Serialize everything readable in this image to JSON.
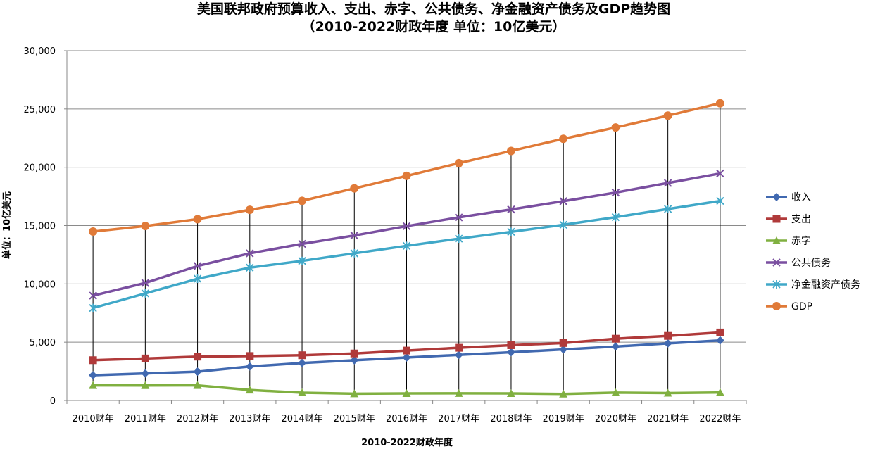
{
  "chart_data": {
    "type": "line",
    "title": "美国联邦政府预算收入、支出、赤字、公共债务、净金融资产债务及GDP趋势图",
    "subtitle": "（2010-2022财政年度  单位：10亿美元）",
    "xlabel": "2010-2022财政年度",
    "ylabel": "单位：10亿美元",
    "categories": [
      "2010财年",
      "2011财年",
      "2012财年",
      "2013财年",
      "2014财年",
      "2015财年",
      "2016财年",
      "2017财年",
      "2018财年",
      "2019财年",
      "2020财年",
      "2021财年",
      "2022财年"
    ],
    "ylim": [
      0,
      30000
    ],
    "yticks": [
      0,
      5000,
      10000,
      15000,
      20000,
      25000,
      30000
    ],
    "ytick_labels": [
      "0",
      "5,000",
      "10,000",
      "15,000",
      "20,000",
      "25,000",
      "30,000"
    ],
    "grid": true,
    "drop_lines": true,
    "legend_position": "right",
    "series": [
      {
        "name": "收入",
        "color": "#4169b0",
        "marker": "diamond",
        "values": [
          2165,
          2314,
          2469,
          2915,
          3215,
          3450,
          3680,
          3910,
          4135,
          4375,
          4625,
          4900,
          5150
        ]
      },
      {
        "name": "支出",
        "color": "#b03a3a",
        "marker": "square",
        "values": [
          3455,
          3600,
          3760,
          3810,
          3880,
          4030,
          4280,
          4520,
          4740,
          4930,
          5300,
          5540,
          5830
        ]
      },
      {
        "name": "赤字",
        "color": "#80b040",
        "marker": "triangle",
        "values": [
          1290,
          1286,
          1291,
          895,
          665,
          580,
          600,
          610,
          605,
          555,
          675,
          635,
          685
        ]
      },
      {
        "name": "公共债务",
        "color": "#7a4fa0",
        "marker": "x",
        "values": [
          8990,
          10080,
          11530,
          12620,
          13430,
          14150,
          14950,
          15700,
          16380,
          17090,
          17830,
          18650,
          19470
        ]
      },
      {
        "name": "净金融资产债务",
        "color": "#40a8c8",
        "marker": "star",
        "values": [
          7930,
          9180,
          10440,
          11390,
          11970,
          12620,
          13260,
          13880,
          14460,
          15070,
          15720,
          16420,
          17110
        ]
      },
      {
        "name": "GDP",
        "color": "#e07a38",
        "marker": "circle",
        "values": [
          14490,
          14960,
          15550,
          16350,
          17120,
          18190,
          19260,
          20350,
          21400,
          22440,
          23410,
          24430,
          25490
        ]
      }
    ]
  }
}
